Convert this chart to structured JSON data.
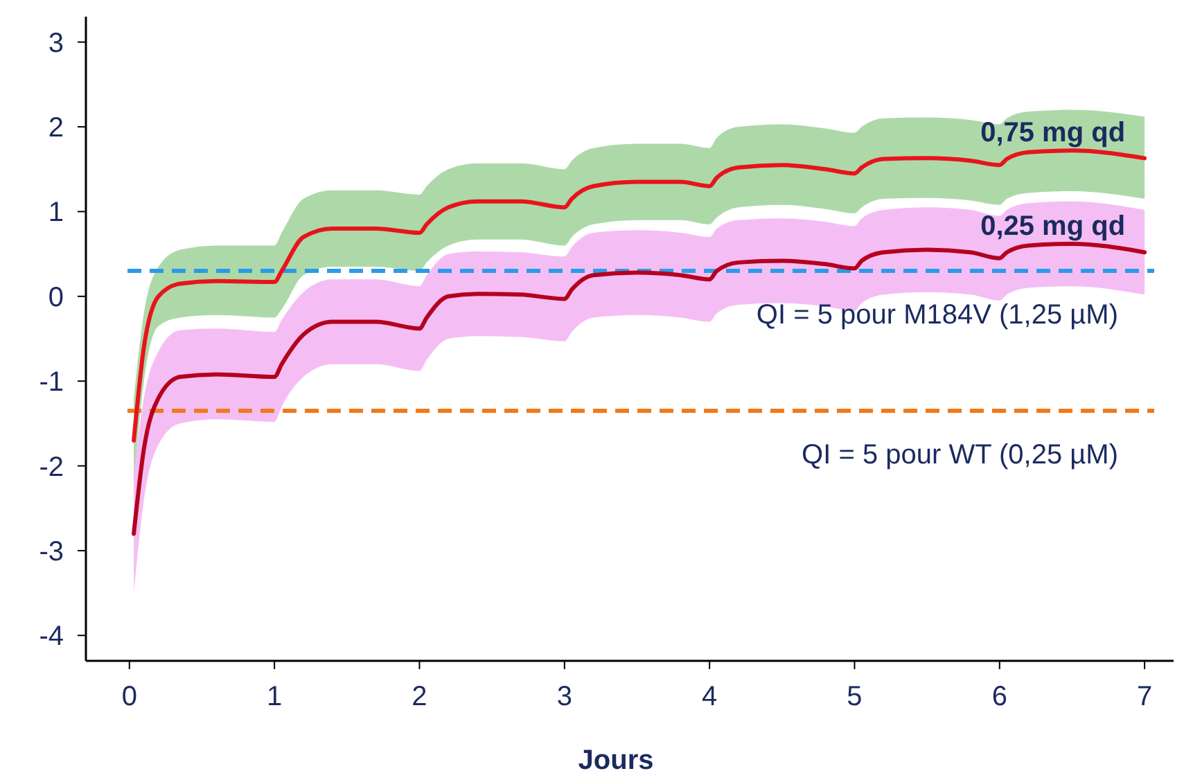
{
  "chart_data": {
    "type": "line",
    "xlabel": "Jours",
    "xlim": [
      -0.3,
      7.2
    ],
    "ylim": [
      -4.3,
      3.3
    ],
    "xticks": [
      0,
      1,
      2,
      3,
      4,
      5,
      6,
      7
    ],
    "yticks": [
      -4,
      -3,
      -2,
      -1,
      0,
      1,
      2,
      3
    ],
    "grid": false,
    "marker": "none",
    "line_style": "solid",
    "series": [
      {
        "name": "0,75 mg qd",
        "color": "#e8141c",
        "x": [
          0.03,
          0.1,
          0.2,
          0.35,
          0.6,
          1.0,
          1.05,
          1.2,
          1.4,
          1.7,
          2.0,
          2.05,
          2.2,
          2.4,
          2.7,
          3.0,
          3.05,
          3.2,
          3.5,
          3.8,
          4.0,
          4.05,
          4.2,
          4.5,
          4.8,
          5.0,
          5.05,
          5.2,
          5.5,
          5.8,
          6.0,
          6.05,
          6.2,
          6.5,
          7.0
        ],
        "values": [
          -1.7,
          -0.6,
          0.0,
          0.15,
          0.18,
          0.17,
          0.3,
          0.7,
          0.8,
          0.8,
          0.75,
          0.85,
          1.05,
          1.12,
          1.12,
          1.05,
          1.15,
          1.3,
          1.35,
          1.35,
          1.3,
          1.4,
          1.52,
          1.55,
          1.5,
          1.45,
          1.52,
          1.62,
          1.63,
          1.6,
          1.55,
          1.62,
          1.7,
          1.72,
          1.63
        ],
        "lower": [
          -2.2,
          -1.0,
          -0.35,
          -0.25,
          -0.22,
          -0.25,
          -0.15,
          0.25,
          0.35,
          0.35,
          0.3,
          0.4,
          0.6,
          0.67,
          0.67,
          0.6,
          0.7,
          0.85,
          0.9,
          0.9,
          0.85,
          0.93,
          1.05,
          1.08,
          1.03,
          0.98,
          1.05,
          1.15,
          1.16,
          1.13,
          1.08,
          1.15,
          1.22,
          1.24,
          1.15
        ],
        "upper": [
          -1.2,
          -0.2,
          0.35,
          0.55,
          0.6,
          0.6,
          0.75,
          1.15,
          1.25,
          1.25,
          1.2,
          1.3,
          1.5,
          1.57,
          1.57,
          1.5,
          1.6,
          1.75,
          1.8,
          1.8,
          1.75,
          1.87,
          2.0,
          2.03,
          1.98,
          1.93,
          2.0,
          2.1,
          2.11,
          2.08,
          2.03,
          2.1,
          2.18,
          2.2,
          2.12
        ]
      },
      {
        "name": "0,25 mg qd",
        "color": "#b5001f",
        "x": [
          0.03,
          0.1,
          0.2,
          0.35,
          0.6,
          1.0,
          1.05,
          1.2,
          1.4,
          1.7,
          2.0,
          2.05,
          2.2,
          2.4,
          2.7,
          3.0,
          3.05,
          3.2,
          3.5,
          3.8,
          4.0,
          4.05,
          4.2,
          4.5,
          4.8,
          5.0,
          5.05,
          5.2,
          5.5,
          5.8,
          6.0,
          6.05,
          6.2,
          6.5,
          7.0
        ],
        "values": [
          -2.8,
          -1.8,
          -1.2,
          -0.95,
          -0.92,
          -0.95,
          -0.8,
          -0.45,
          -0.3,
          -0.3,
          -0.38,
          -0.25,
          0.0,
          0.03,
          0.02,
          -0.03,
          0.08,
          0.25,
          0.28,
          0.25,
          0.2,
          0.3,
          0.4,
          0.42,
          0.38,
          0.33,
          0.42,
          0.52,
          0.55,
          0.52,
          0.45,
          0.52,
          0.6,
          0.62,
          0.52
        ],
        "lower": [
          -3.5,
          -2.4,
          -1.75,
          -1.5,
          -1.45,
          -1.48,
          -1.3,
          -0.95,
          -0.8,
          -0.8,
          -0.88,
          -0.75,
          -0.5,
          -0.47,
          -0.48,
          -0.53,
          -0.42,
          -0.25,
          -0.22,
          -0.25,
          -0.3,
          -0.2,
          -0.1,
          -0.08,
          -0.12,
          -0.17,
          -0.08,
          0.02,
          0.05,
          0.02,
          -0.05,
          0.02,
          0.1,
          0.12,
          0.02
        ],
        "upper": [
          -2.1,
          -1.2,
          -0.65,
          -0.4,
          -0.38,
          -0.42,
          -0.28,
          0.05,
          0.2,
          0.2,
          0.12,
          0.25,
          0.5,
          0.53,
          0.52,
          0.47,
          0.58,
          0.75,
          0.78,
          0.75,
          0.7,
          0.8,
          0.9,
          0.92,
          0.88,
          0.83,
          0.92,
          1.02,
          1.05,
          1.02,
          0.95,
          1.02,
          1.1,
          1.12,
          1.02
        ]
      }
    ],
    "ref_lines": [
      {
        "axis": "y",
        "value": 0.3,
        "color": "#2b9be8",
        "line_style": "dashed"
      },
      {
        "axis": "y",
        "value": -1.35,
        "color": "#f07a1a",
        "line_style": "dashed"
      }
    ],
    "annotations": [
      "QI = 5 pour M184V (1,25 µM)",
      "QI = 5 pour WT (0,25 µM)"
    ]
  }
}
